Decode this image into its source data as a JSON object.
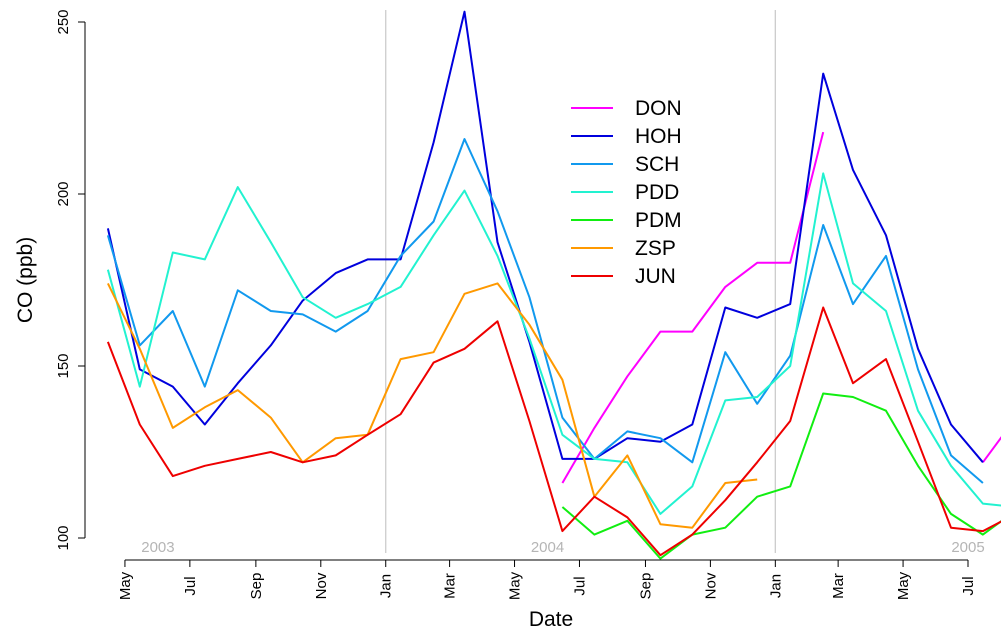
{
  "chart_data": {
    "type": "line",
    "xlabel": "Date",
    "ylabel": "CO (ppb)",
    "x": [
      "2003-04",
      "2003-05",
      "2003-06",
      "2003-07",
      "2003-08",
      "2003-09",
      "2003-10",
      "2003-11",
      "2003-12",
      "2004-01",
      "2004-02",
      "2004-03",
      "2004-04",
      "2004-05",
      "2004-06",
      "2004-07",
      "2004-08",
      "2004-09",
      "2004-10",
      "2004-11",
      "2004-12",
      "2005-01",
      "2005-02",
      "2005-03",
      "2005-04",
      "2005-05",
      "2005-06",
      "2005-07",
      "2005-08"
    ],
    "xlim": [
      "2003-04-01",
      "2005-08-01"
    ],
    "ylim": [
      100,
      250
    ],
    "y_ticks": [
      100,
      150,
      200,
      250
    ],
    "x_ticks": [
      {
        "date": "2003-05-01",
        "label": "May"
      },
      {
        "date": "2003-07-01",
        "label": "Jul"
      },
      {
        "date": "2003-09-01",
        "label": "Sep"
      },
      {
        "date": "2003-11-01",
        "label": "Nov"
      },
      {
        "date": "2004-01-01",
        "label": "Jan"
      },
      {
        "date": "2004-03-01",
        "label": "Mar"
      },
      {
        "date": "2004-05-01",
        "label": "May"
      },
      {
        "date": "2004-07-01",
        "label": "Jul"
      },
      {
        "date": "2004-09-01",
        "label": "Sep"
      },
      {
        "date": "2004-11-01",
        "label": "Nov"
      },
      {
        "date": "2005-01-01",
        "label": "Jan"
      },
      {
        "date": "2005-03-01",
        "label": "Mar"
      },
      {
        "date": "2005-05-01",
        "label": "May"
      },
      {
        "date": "2005-07-01",
        "label": "Jul"
      }
    ],
    "year_labels": [
      {
        "label": "2003",
        "date": "2003-06-01"
      },
      {
        "label": "2004",
        "date": "2004-06-01"
      },
      {
        "label": "2005",
        "date": "2005-07-01"
      }
    ],
    "year_dividers": [
      "2004-01-01",
      "2005-01-01"
    ],
    "legend_position": "top-center",
    "series": [
      {
        "name": "DON",
        "color": "#ff00ff",
        "values": [
          null,
          null,
          null,
          null,
          null,
          null,
          null,
          null,
          null,
          null,
          null,
          null,
          null,
          null,
          116,
          132,
          147,
          160,
          160,
          173,
          180,
          180,
          218,
          null,
          null,
          null,
          null,
          122,
          135
        ]
      },
      {
        "name": "HOH",
        "color": "#0000dd",
        "values": [
          190,
          149,
          144,
          133,
          145,
          156,
          169,
          177,
          181,
          181,
          215,
          253,
          186,
          157,
          123,
          123,
          129,
          128,
          133,
          167,
          164,
          168,
          235,
          207,
          188,
          155,
          133,
          122,
          null
        ]
      },
      {
        "name": "SCH",
        "color": "#1199ee",
        "values": [
          188,
          156,
          166,
          144,
          172,
          166,
          165,
          160,
          166,
          182,
          192,
          216,
          195,
          170,
          135,
          123,
          131,
          129,
          122,
          154,
          139,
          153,
          191,
          168,
          182,
          149,
          124,
          116,
          null
        ]
      },
      {
        "name": "PDD",
        "color": "#22f2d0",
        "values": [
          178,
          144,
          183,
          181,
          202,
          186,
          170,
          164,
          168,
          173,
          188,
          201,
          182,
          158,
          130,
          123,
          122,
          107,
          115,
          140,
          141,
          150,
          206,
          174,
          166,
          137,
          121,
          110,
          109
        ]
      },
      {
        "name": "PDM",
        "color": "#11ee11",
        "values": [
          null,
          null,
          null,
          null,
          null,
          null,
          null,
          null,
          null,
          null,
          null,
          null,
          null,
          null,
          109,
          101,
          105,
          94,
          101,
          103,
          112,
          115,
          142,
          141,
          137,
          121,
          107,
          101,
          108
        ]
      },
      {
        "name": "ZSP",
        "color": "#ff9900",
        "values": [
          174,
          155,
          132,
          138,
          143,
          135,
          122,
          129,
          130,
          152,
          154,
          171,
          174,
          162,
          146,
          112,
          124,
          104,
          103,
          116,
          117,
          null,
          null,
          null,
          null,
          null,
          null,
          null,
          null
        ]
      },
      {
        "name": "JUN",
        "color": "#ee0000",
        "values": [
          157,
          133,
          118,
          121,
          123,
          125,
          122,
          124,
          130,
          136,
          151,
          155,
          163,
          134,
          102,
          112,
          106,
          95,
          101,
          111,
          122,
          134,
          167,
          145,
          152,
          128,
          103,
          102,
          107
        ]
      }
    ]
  }
}
